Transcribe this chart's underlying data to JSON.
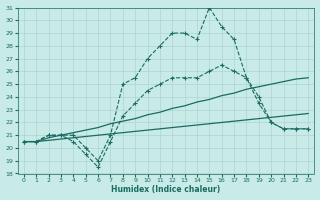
{
  "xlabel": "Humidex (Indice chaleur)",
  "background_color": "#c8ebe8",
  "grid_color": "#aed4d0",
  "line_color": "#1a6b60",
  "xlim": [
    -0.5,
    23.5
  ],
  "ylim": [
    18,
    31
  ],
  "xticks": [
    0,
    1,
    2,
    3,
    4,
    5,
    6,
    7,
    8,
    9,
    10,
    11,
    12,
    13,
    14,
    15,
    16,
    17,
    18,
    19,
    20,
    21,
    22,
    23
  ],
  "yticks": [
    18,
    19,
    20,
    21,
    22,
    23,
    24,
    25,
    26,
    27,
    28,
    29,
    30,
    31
  ],
  "series_dashed_high": [
    20.5,
    20.5,
    21.0,
    21.0,
    21.0,
    20.0,
    19.0,
    21.0,
    25.0,
    25.5,
    27.0,
    28.0,
    29.0,
    29.0,
    28.5,
    31.0,
    29.5,
    28.5,
    25.5,
    23.5,
    22.0,
    21.5,
    21.5,
    21.5
  ],
  "series_dashed_mid": [
    20.5,
    20.5,
    21.0,
    21.0,
    20.5,
    19.5,
    18.5,
    20.5,
    22.5,
    23.5,
    24.5,
    25.0,
    25.5,
    25.5,
    25.5,
    26.0,
    26.5,
    26.0,
    25.5,
    24.0,
    22.0,
    21.5,
    21.5,
    21.5
  ],
  "series_solid_high": [
    20.5,
    20.5,
    20.8,
    21.0,
    21.2,
    21.4,
    21.6,
    21.9,
    22.1,
    22.3,
    22.6,
    22.8,
    23.1,
    23.3,
    23.6,
    23.8,
    24.1,
    24.3,
    24.6,
    24.8,
    25.0,
    25.2,
    25.4,
    25.5
  ],
  "series_solid_low": [
    20.5,
    20.5,
    20.6,
    20.7,
    20.8,
    20.9,
    21.0,
    21.1,
    21.2,
    21.3,
    21.4,
    21.5,
    21.6,
    21.7,
    21.8,
    21.9,
    22.0,
    22.1,
    22.2,
    22.3,
    22.4,
    22.5,
    22.6,
    22.7
  ]
}
